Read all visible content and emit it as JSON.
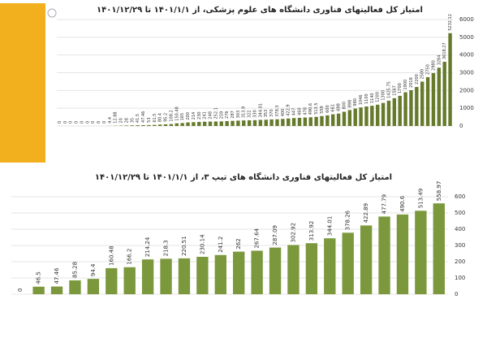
{
  "chart_data": [
    {
      "type": "bar",
      "title": "امتیاز کل فعالیتهای فناوری دانشگاه های علوم پزشکی، از ۱۴۰۱/۱/۱ تا ۱۴۰۱/۱۲/۲۹",
      "categories": [
        null,
        null,
        null,
        null,
        null,
        null,
        null,
        null,
        null,
        null,
        null,
        null,
        null,
        null,
        null,
        null,
        null,
        null,
        null,
        null,
        null,
        null,
        null,
        null,
        null,
        null,
        null,
        null,
        null,
        null,
        null,
        null,
        null,
        null,
        null,
        null,
        null,
        null,
        null,
        null,
        null,
        null,
        null,
        null,
        null,
        null,
        null,
        null,
        null,
        null,
        null,
        null,
        null,
        null,
        null,
        null,
        null,
        null,
        null,
        null,
        null,
        null,
        null,
        null,
        null,
        null,
        null,
        null,
        null,
        null,
        null
      ],
      "values": [
        0,
        0,
        0,
        0,
        0,
        0,
        0,
        0,
        0,
        4.4,
        12.88,
        20,
        28,
        35,
        41.5,
        47.46,
        53,
        61.5,
        80.4,
        95.2,
        108.2,
        150.48,
        165,
        200,
        214,
        230,
        241,
        248,
        252.1,
        259,
        276,
        287,
        303,
        313.9,
        322,
        330,
        344.01,
        353,
        370,
        378.3,
        400,
        422.9,
        447,
        460,
        478,
        490.6,
        513.5,
        559,
        600,
        661,
        698,
        800,
        898,
        980,
        1046,
        1100,
        1140,
        1200,
        1300,
        1425.75,
        1567,
        1700,
        1900,
        2018,
        2200,
        2500,
        2750,
        2980,
        3284,
        3618.27,
        5232.12
      ],
      "color": "#667a2c",
      "ylim": [
        0,
        6000
      ],
      "yticks": [
        0,
        1000,
        2000,
        3000,
        4000,
        5000,
        6000
      ]
    },
    {
      "type": "bar",
      "title": "امتیاز کل فعالیتهای فناوری دانشگاه های تیپ ۳، از ۱۴۰۱/۱/۱ تا ۱۴۰۱/۱۲/۲۹",
      "categories": [
        null,
        null,
        null,
        null,
        null,
        null,
        null,
        null,
        null,
        null,
        null,
        null,
        null,
        null,
        null,
        null,
        null,
        null,
        null,
        null,
        null,
        null,
        null,
        null
      ],
      "values": [
        0,
        46.5,
        47.46,
        85.28,
        94.4,
        160.48,
        166.2,
        214.24,
        218.3,
        220.51,
        230.14,
        241.2,
        262,
        267.64,
        287.09,
        302.92,
        313.92,
        344.01,
        378.26,
        422.89,
        477.79,
        490.6,
        513.49,
        558.97
      ],
      "color": "#7b983d",
      "ylim": [
        0,
        600
      ],
      "yticks": [
        0,
        100,
        200,
        300,
        400,
        500,
        600
      ]
    }
  ]
}
